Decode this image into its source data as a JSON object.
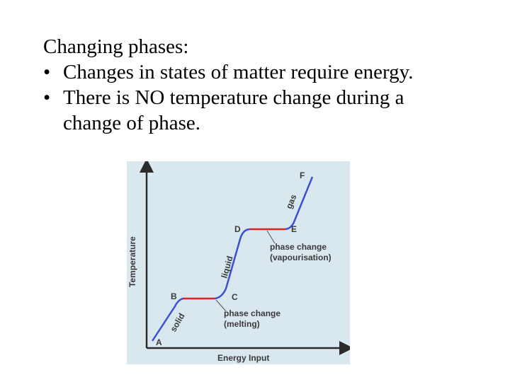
{
  "slide": {
    "heading": "Changing phases:",
    "bullets": [
      {
        "marker": "•",
        "text": "Changes in states of matter require energy."
      },
      {
        "marker": "•",
        "line1": "There is NO temperature change during a",
        "line2": "change of phase."
      }
    ]
  },
  "diagram": {
    "colors": {
      "background": "#d9e8ee",
      "curve": "#3a4fd6",
      "phase_segment": "#e31f1f",
      "axes": "#2b2b2b"
    },
    "axis_labels": {
      "y": "Temperature",
      "x": "Energy Input"
    },
    "points": {
      "a": "A",
      "b": "B",
      "c": "C",
      "d": "D",
      "e": "E",
      "f": "F"
    },
    "state_labels": {
      "solid": "solid",
      "liquid": "liquid",
      "gas": "gas"
    },
    "annotations": {
      "melting": {
        "line1": "phase change",
        "line2": "(melting)"
      },
      "vapourisation": {
        "line1": "phase change",
        "line2": "(vapourisation)"
      }
    }
  }
}
